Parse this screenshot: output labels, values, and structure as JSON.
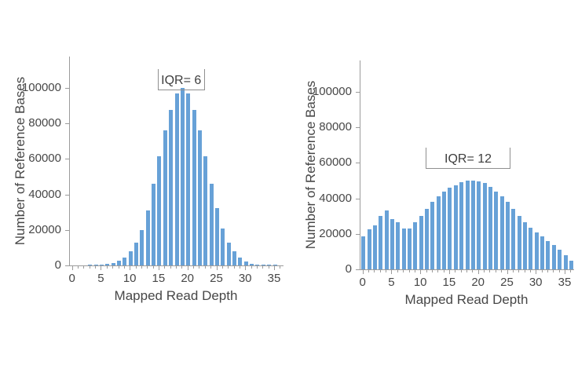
{
  "figure": {
    "background": "#ffffff",
    "description": "Two side-by-side histograms of Number of Reference Bases vs Mapped Read Depth, left with IQR= 6, right with IQR= 12"
  },
  "colors": {
    "bar_fill": "#67a1d7",
    "axis_line": "#9b9b9b",
    "text": "#474747",
    "annotation_line": "#8f8f8f"
  },
  "chart_data": [
    {
      "type": "bar",
      "title": "",
      "xlabel": "Mapped Read Depth",
      "ylabel": "Number of Reference Bases",
      "grid": false,
      "legend": null,
      "xlim": [
        0,
        36
      ],
      "ylim": [
        0,
        110000
      ],
      "x": [
        0,
        1,
        2,
        3,
        4,
        5,
        6,
        7,
        8,
        9,
        10,
        11,
        12,
        13,
        14,
        15,
        16,
        17,
        18,
        19,
        20,
        21,
        22,
        23,
        24,
        25,
        26,
        27,
        28,
        29,
        30,
        31,
        32,
        33,
        34,
        35,
        36
      ],
      "values": [
        0,
        0,
        0,
        100,
        200,
        350,
        700,
        1400,
        2600,
        4600,
        7800,
        12800,
        20000,
        31000,
        46000,
        61500,
        76000,
        87500,
        97000,
        100000,
        97000,
        87500,
        76000,
        61500,
        46000,
        32500,
        21000,
        13000,
        7800,
        4400,
        2300,
        1100,
        500,
        250,
        100,
        50,
        0
      ],
      "x_tick_values": [
        0,
        5,
        10,
        15,
        20,
        25,
        30,
        35
      ],
      "x_tick_labels": [
        "0",
        "5",
        "10",
        "15",
        "20",
        "25",
        "30",
        "35"
      ],
      "y_tick_values": [
        0,
        20000,
        40000,
        60000,
        80000,
        100000
      ],
      "y_tick_labels": [
        "0",
        "20000",
        "40000",
        "60000",
        "80000",
        "100000"
      ],
      "annotation": {
        "label": "IQR= 6",
        "x_from": 14.7,
        "x_to": 22.6,
        "y": 99000
      }
    },
    {
      "type": "bar",
      "title": "",
      "xlabel": "Mapped Read Depth",
      "ylabel": "Number of Reference Bases",
      "grid": false,
      "legend": null,
      "xlim": [
        0,
        36
      ],
      "ylim": [
        0,
        110000
      ],
      "x": [
        0,
        1,
        2,
        3,
        4,
        5,
        6,
        7,
        8,
        9,
        10,
        11,
        12,
        13,
        14,
        15,
        16,
        17,
        18,
        19,
        20,
        21,
        22,
        23,
        24,
        25,
        26,
        27,
        28,
        29,
        30,
        31,
        32,
        33,
        34,
        35,
        36
      ],
      "values": [
        18500,
        22500,
        25000,
        30000,
        33000,
        28500,
        26500,
        23000,
        23000,
        26500,
        30000,
        34000,
        38000,
        41000,
        44000,
        46000,
        47500,
        49000,
        50000,
        50000,
        49500,
        48500,
        46500,
        44000,
        41000,
        38000,
        34000,
        30000,
        26500,
        23500,
        21000,
        18500,
        16000,
        13500,
        11000,
        8000,
        5000
      ],
      "x_tick_values": [
        0,
        5,
        10,
        15,
        20,
        25,
        30,
        35
      ],
      "x_tick_labels": [
        "0",
        "5",
        "10",
        "15",
        "20",
        "25",
        "30",
        "35"
      ],
      "y_tick_values": [
        0,
        20000,
        40000,
        60000,
        80000,
        100000
      ],
      "y_tick_labels": [
        "0",
        "20000",
        "40000",
        "60000",
        "80000",
        "100000"
      ],
      "annotation": {
        "label": "IQR= 12",
        "x_from": 10.8,
        "x_to": 25.2,
        "y": 57000
      }
    }
  ]
}
